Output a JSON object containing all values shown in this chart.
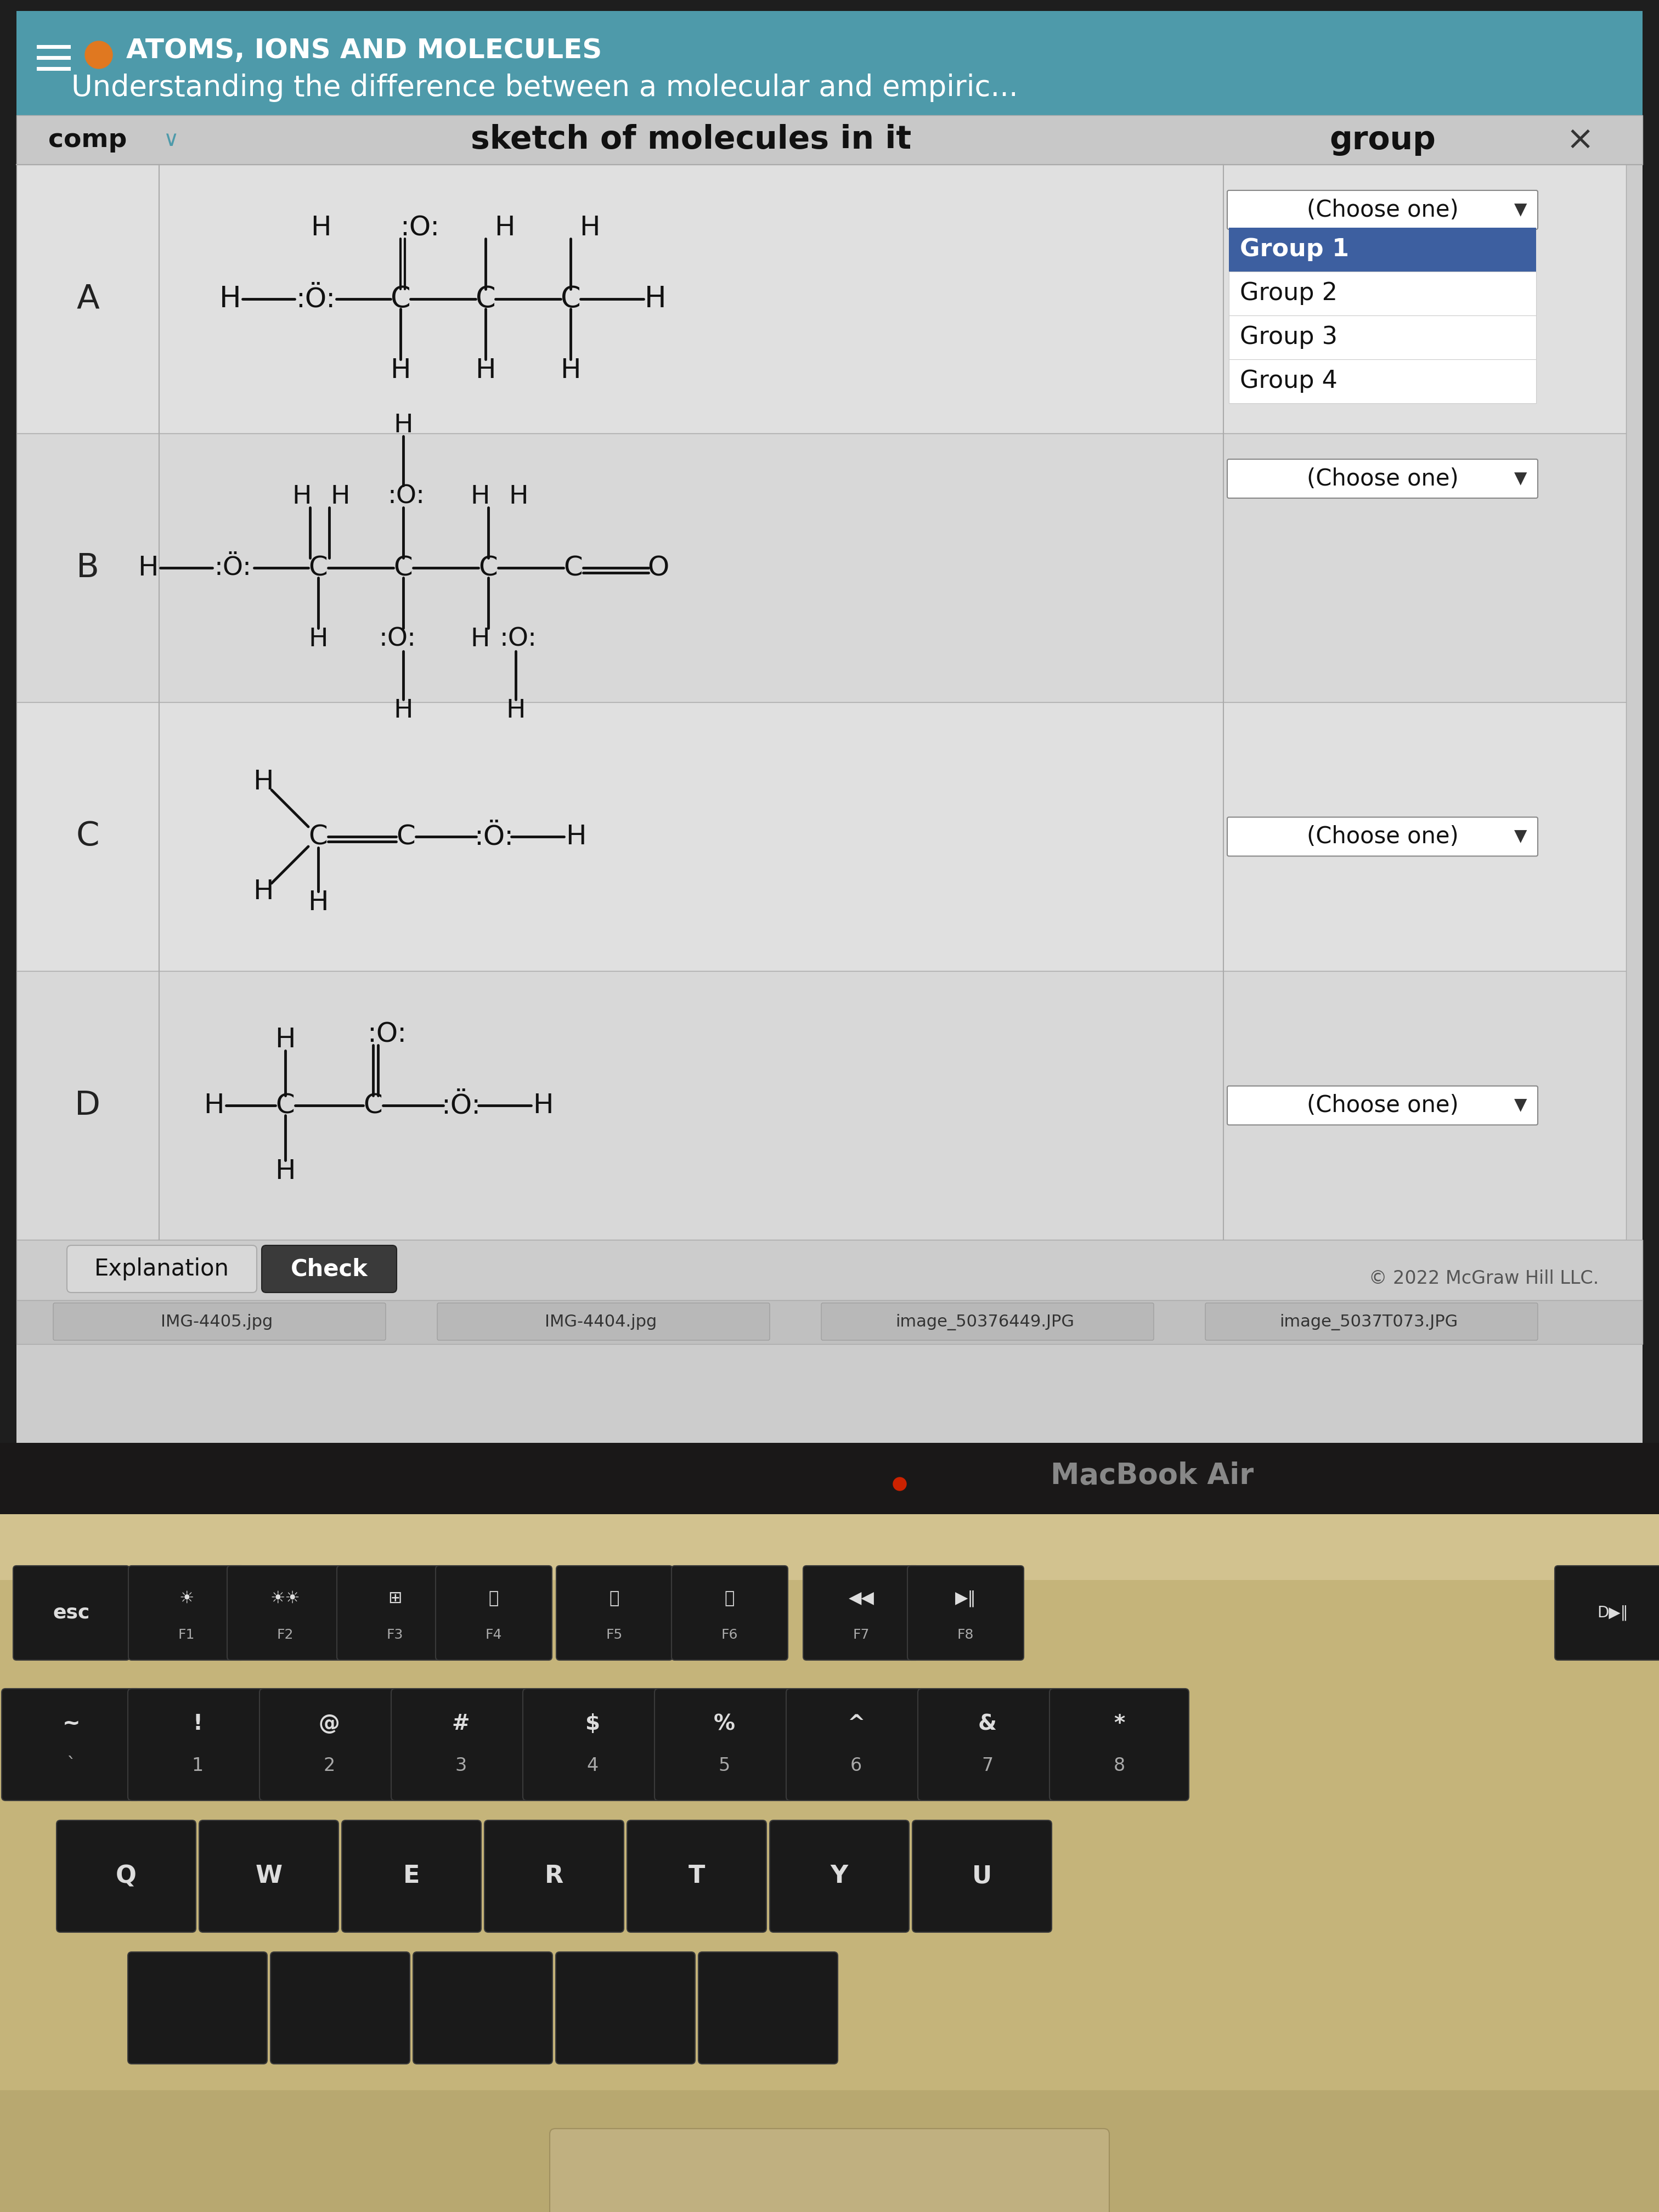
{
  "bg_dark": "#0a0a0a",
  "laptop_body_color": "#c8b88a",
  "laptop_body_dark": "#8a7a5a",
  "screen_bezel_color": "#1a1a1a",
  "screen_bg": "#d0d0d0",
  "header_bg": "#4e9aaa",
  "header_title": "ATOMS, IONS AND MOLECULES",
  "header_subtitle": "Understanding the difference between a molecular and empiric...",
  "table_header_col1": "comp",
  "table_header_col2": "sketch of molecules in it",
  "table_header_col3": "group",
  "row_labels": [
    "A",
    "B",
    "C",
    "D"
  ],
  "dropdown_default": "(Choose one)",
  "dropdown_options": [
    "Group 1",
    "Group 2",
    "Group 3",
    "Group 4"
  ],
  "explanation_btn": "Explanation",
  "check_btn": "Check",
  "copyright": "© 2022 McGraw Hill LLC.",
  "macbook_label": "MacBook Air",
  "teal_color": "#4e9aaa",
  "blue_highlight": "#3d5fa0",
  "white": "#ffffff",
  "black": "#111111",
  "light_gray": "#d8d8d8",
  "mid_gray": "#b8b8b8",
  "row_bg_even": "#e0e0e0",
  "row_bg_odd": "#d8d8d8",
  "key_bg": "#1a1a1a",
  "key_text": "#e0e0e0",
  "kbd_body": "#c8b470",
  "taskbar_items": [
    "IMG-4405.jpg",
    "IMG-4404.jpg",
    "image_50376449.JPG",
    "image_5037T073.JPG"
  ]
}
